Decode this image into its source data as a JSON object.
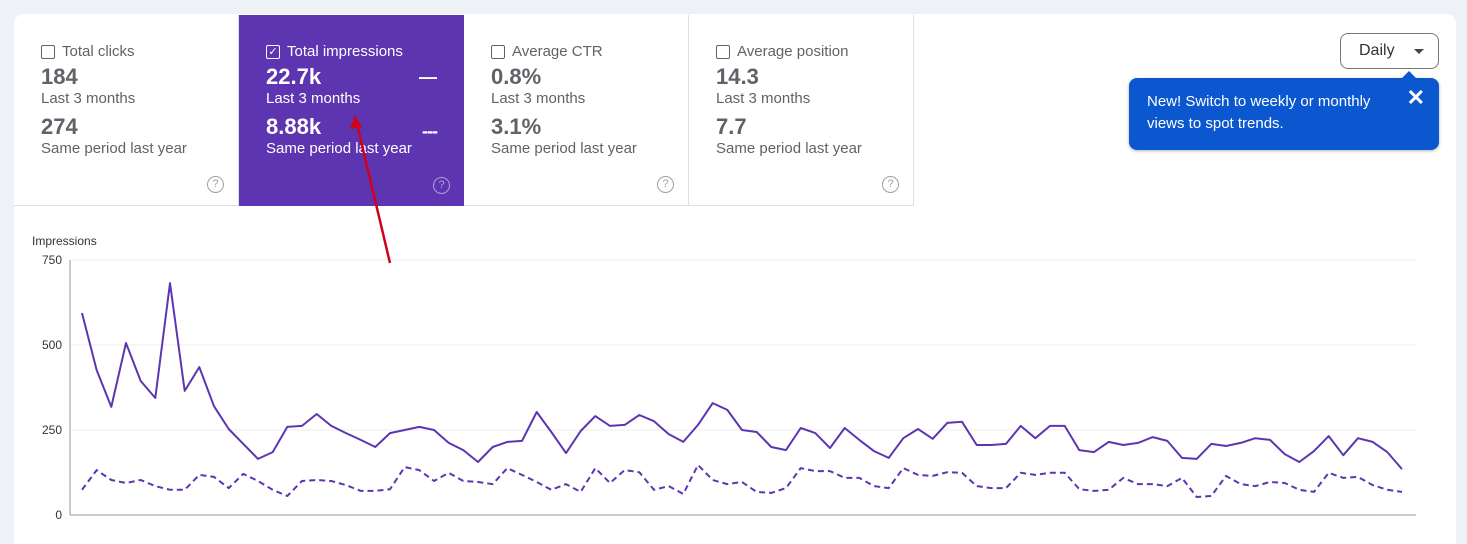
{
  "metrics": [
    {
      "label": "Total clicks",
      "checked": false,
      "value": "184",
      "period": "Last 3 months",
      "compare_value": "274",
      "compare_period": "Same period last year",
      "help": "?"
    },
    {
      "label": "Total impressions",
      "checked": true,
      "value": "22.7k",
      "period": "Last 3 months",
      "compare_value": "8.88k",
      "compare_period": "Same period last year",
      "help": "?",
      "legend_solid": "—",
      "legend_dashed": "---"
    },
    {
      "label": "Average CTR",
      "checked": false,
      "value": "0.8%",
      "period": "Last 3 months",
      "compare_value": "3.1%",
      "compare_period": "Same period last year",
      "help": "?"
    },
    {
      "label": "Average position",
      "checked": false,
      "value": "14.3",
      "period": "Last 3 months",
      "compare_value": "7.7",
      "compare_period": "Same period last year",
      "help": "?"
    }
  ],
  "granularity": {
    "selected": "Daily"
  },
  "tooltip": {
    "text": "New! Switch to weekly or monthly views to spot trends.",
    "close": "✕"
  },
  "colors": {
    "accent": "#5e35b1",
    "tooltip": "#0b57d0",
    "arrow": "#d0021b"
  },
  "chart_data": {
    "type": "line",
    "ylabel": "Impressions",
    "ylim": [
      0,
      750
    ],
    "yticks": [
      "0",
      "250",
      "500",
      "750"
    ],
    "grid": true,
    "series": [
      {
        "name": "Last 3 months",
        "style": "solid",
        "values": [
          594,
          426,
          318,
          506,
          394,
          344,
          682,
          365,
          435,
          320,
          253,
          209,
          165,
          185,
          259,
          262,
          297,
          262,
          241,
          221,
          200,
          241,
          250,
          259,
          250,
          212,
          191,
          156,
          200,
          215,
          218,
          303,
          244,
          182,
          247,
          291,
          262,
          265,
          294,
          276,
          238,
          215,
          265,
          329,
          309,
          250,
          244,
          200,
          191,
          256,
          241,
          197,
          256,
          221,
          188,
          168,
          226,
          253,
          224,
          271,
          274,
          206,
          206,
          209,
          262,
          226,
          262,
          262,
          191,
          185,
          215,
          206,
          212,
          229,
          218,
          168,
          165,
          209,
          203,
          212,
          226,
          221,
          179,
          156,
          188,
          232,
          176,
          226,
          215,
          185,
          135
        ]
      },
      {
        "name": "Same period last year",
        "style": "dashed",
        "values": [
          74,
          132,
          103,
          94,
          103,
          85,
          74,
          74,
          118,
          112,
          79,
          121,
          100,
          74,
          56,
          100,
          103,
          100,
          88,
          71,
          71,
          76,
          141,
          132,
          100,
          124,
          100,
          97,
          91,
          138,
          118,
          97,
          74,
          91,
          68,
          138,
          94,
          132,
          126,
          74,
          85,
          62,
          147,
          103,
          91,
          97,
          68,
          65,
          79,
          138,
          129,
          129,
          109,
          109,
          85,
          79,
          138,
          118,
          115,
          126,
          124,
          85,
          79,
          79,
          124,
          118,
          124,
          124,
          76,
          71,
          74,
          109,
          91,
          91,
          85,
          109,
          53,
          56,
          115,
          91,
          85,
          97,
          94,
          74,
          68,
          124,
          109,
          112,
          88,
          74,
          68
        ]
      }
    ]
  }
}
